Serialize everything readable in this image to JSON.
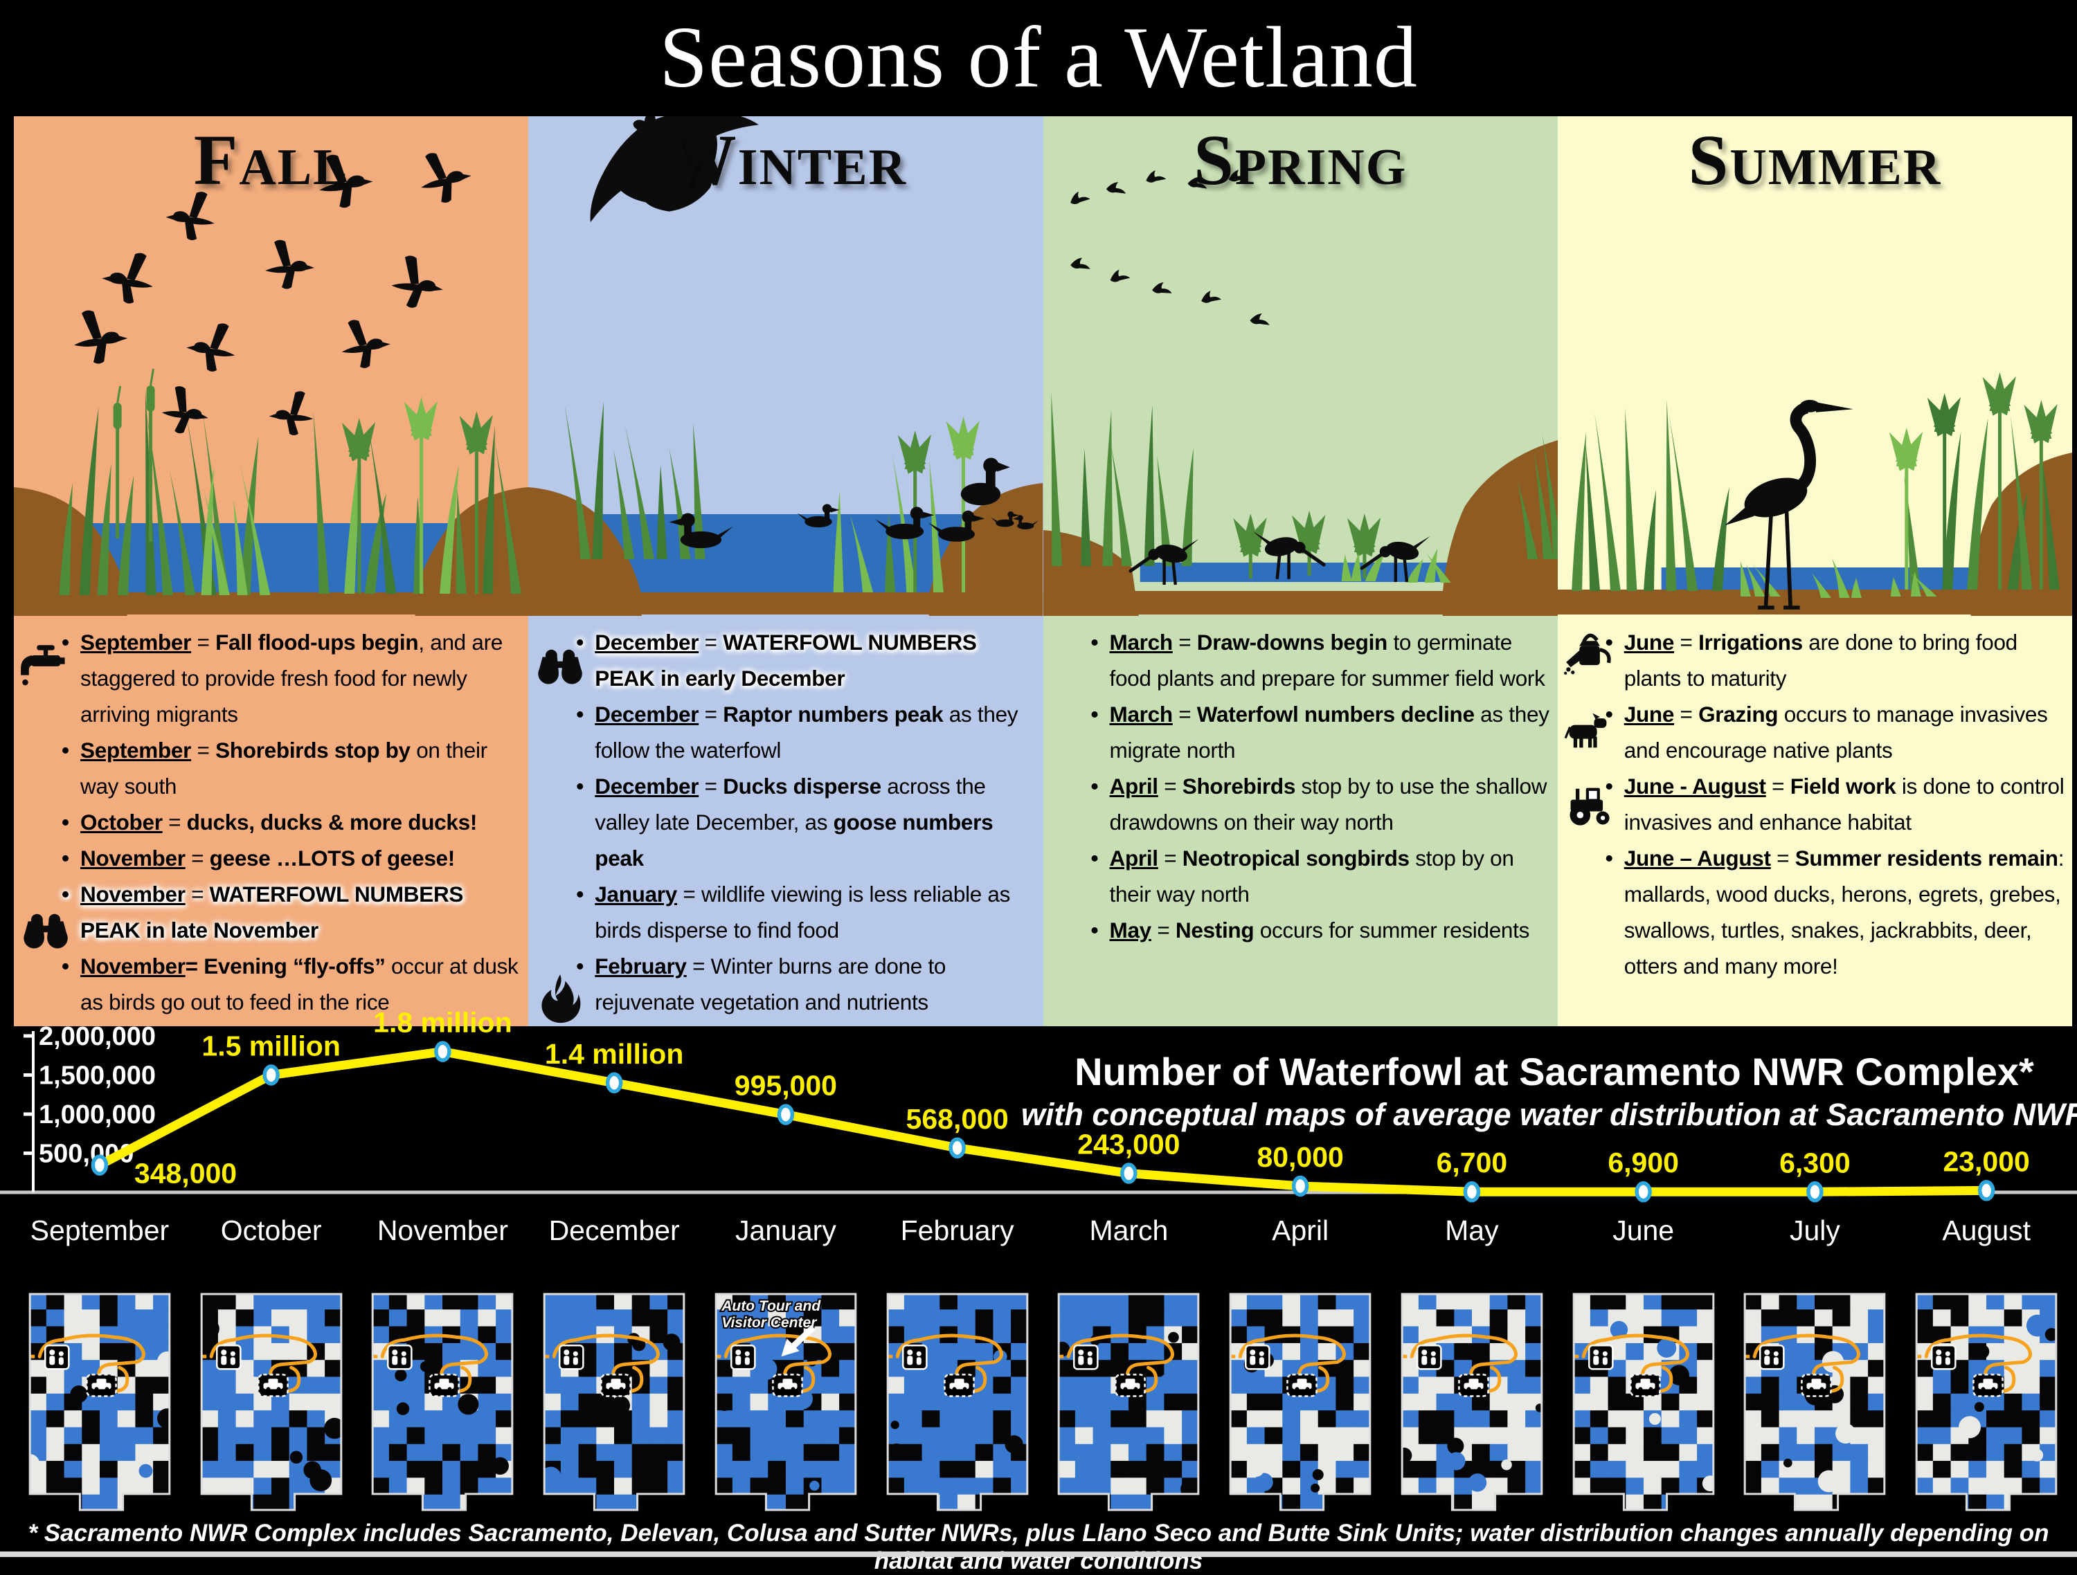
{
  "title": "Seasons of a Wetland",
  "palette": {
    "water": "#2F6FBC",
    "levee_brown": "#8E5B23",
    "plant_dark": "#4E8C3B",
    "plant_darker": "#3E7A33",
    "plant_light": "#79BB4F",
    "silhouette": "#0c0c0c",
    "chart_line": "#FFEF00",
    "marker_stroke": "#2FA8E0",
    "map_blue": "#3A79D0",
    "map_route_orange": "#F6A21D"
  },
  "seasons": [
    {
      "name": "Fall",
      "bg": "#F2AC7D",
      "bullets": [
        {
          "icon": "faucet-icon",
          "text": "__September__ = **Fall flood-ups begin**, and are staggered to provide fresh food for newly arriving migrants"
        },
        {
          "text": "__September__ = **Shorebirds stop by** on their way south"
        },
        {
          "text": "__October__ = **ducks, ducks & more ducks!**"
        },
        {
          "text": "__November__ = **geese …LOTS of geese!**"
        },
        {
          "icon": "binoculars-icon",
          "highlight": true,
          "text": "__November__ =  **WATERFOWL NUMBERS PEAK in late November**"
        },
        {
          "text": "__November__**= Evening “fly-offs”** occur at dusk as birds go out to feed in the rice"
        }
      ]
    },
    {
      "name": "Winter",
      "bg": "#B7C8E8",
      "bullets": [
        {
          "icon": "binoculars-icon",
          "highlight": true,
          "text": "__December__ = **WATERFOWL NUMBERS PEAK in early December**"
        },
        {
          "text": "__December__ = **Raptor numbers peak** as they follow the waterfowl"
        },
        {
          "text": "__December__ = **Ducks disperse** across the valley late December, as **goose numbers peak**"
        },
        {
          "text": "__January__ = wildlife viewing is less reliable as birds disperse to find food"
        },
        {
          "icon": "fire-icon",
          "text": "__February__ = Winter burns are done to rejuvenate vegetation and nutrients"
        }
      ]
    },
    {
      "name": "Spring",
      "bg": "#C8DFB5",
      "bullets": [
        {
          "text": "__March__ = **Draw-downs begin** to germinate food plants and prepare for summer field work"
        },
        {
          "text": "__March__ = **Waterfowl numbers decline** as they migrate north"
        },
        {
          "text": "__April__ = **Shorebirds** stop by to use the shallow drawdowns on their way north"
        },
        {
          "text": "__April__ = **Neotropical songbirds** stop by on their way north"
        },
        {
          "text": "__May__ = **Nesting** occurs for summer residents"
        }
      ]
    },
    {
      "name": "Summer",
      "bg": "#FCFBCE",
      "bullets": [
        {
          "icon": "watering-can-icon",
          "text": "__June__ = **Irrigations** are done to bring food plants to maturity"
        },
        {
          "icon": "cow-icon",
          "text": "__June__ = **Grazing** occurs to manage invasives and encourage native plants"
        },
        {
          "icon": "tractor-icon",
          "text": "__June - August__ = **Field work** is done to control invasives and enhance habitat"
        },
        {
          "text": "__June – August__ = **Summer residents remain**:  mallards, wood ducks, herons, egrets, grebes, swallows, turtles, snakes, jackrabbits, deer, otters and many more!"
        }
      ]
    }
  ],
  "chart_data": {
    "type": "line",
    "title": "Number of Waterfowl at Sacramento NWR Complex*",
    "subtitle": "with conceptual maps of average water distribution at Sacramento NWR",
    "categories": [
      "September",
      "October",
      "November",
      "December",
      "January",
      "February",
      "March",
      "April",
      "May",
      "June",
      "July",
      "August"
    ],
    "values": [
      348000,
      1500000,
      1800000,
      1400000,
      995000,
      568000,
      243000,
      80000,
      6700,
      6900,
      6300,
      23000
    ],
    "point_labels": [
      "348,000",
      "1.5 million",
      "1.8 million",
      "1.4 million",
      "995,000",
      "568,000",
      "243,000",
      "80,000",
      "6,700",
      "6,900",
      "6,300",
      "23,000"
    ],
    "y_tick_labels": [
      "2,000,000",
      "1,500,000",
      "1,000,000",
      "500,000"
    ],
    "y_tick_values": [
      2000000,
      1500000,
      1000000,
      500000
    ],
    "ylim": [
      0,
      2000000
    ],
    "legend": "none",
    "grid": "off"
  },
  "maps": {
    "january_label": "Auto Tour and Visitor Center",
    "water_level": [
      0.5,
      0.55,
      0.68,
      0.85,
      0.9,
      0.85,
      0.8,
      0.55,
      0.42,
      0.38,
      0.38,
      0.45
    ]
  },
  "footnote": "* Sacramento NWR Complex includes Sacramento, Delevan, Colusa and Sutter NWRs, plus Llano Seco and Butte Sink Units;  water distribution changes annually depending on habitat and water conditions"
}
